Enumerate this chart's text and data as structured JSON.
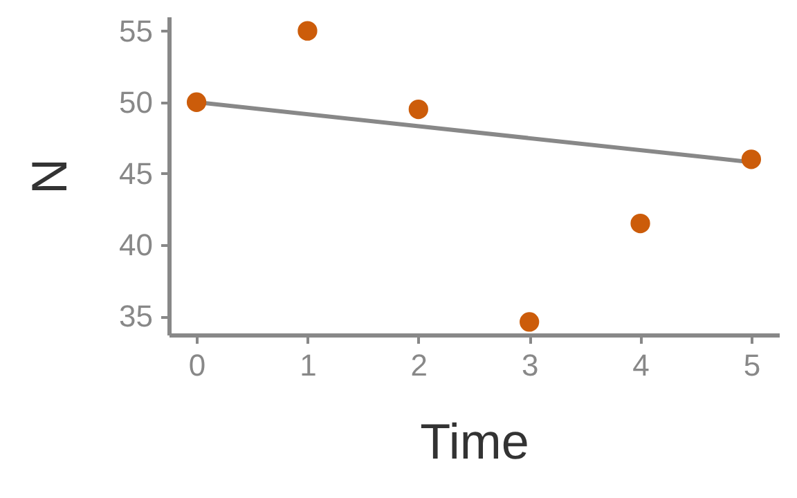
{
  "chart_data": {
    "type": "scatter",
    "xlabel": "Time",
    "ylabel": "N",
    "xlim": [
      -0.25,
      5.25
    ],
    "ylim": [
      33.7,
      56
    ],
    "xticks": [
      0,
      1,
      2,
      3,
      4,
      5
    ],
    "yticks": [
      35,
      40,
      45,
      50,
      55
    ],
    "grid": false,
    "x": [
      0,
      1,
      2,
      3,
      4,
      5
    ],
    "series": [
      {
        "color": "#cc5c0a",
        "marker": "circle",
        "values": [
          50,
          55,
          49.5,
          34.6,
          41.5,
          46
        ]
      },
      {
        "type": "line",
        "marker": "none",
        "color": "#888888",
        "x": [
          0,
          5
        ],
        "values": [
          50,
          45.8
        ]
      }
    ]
  }
}
